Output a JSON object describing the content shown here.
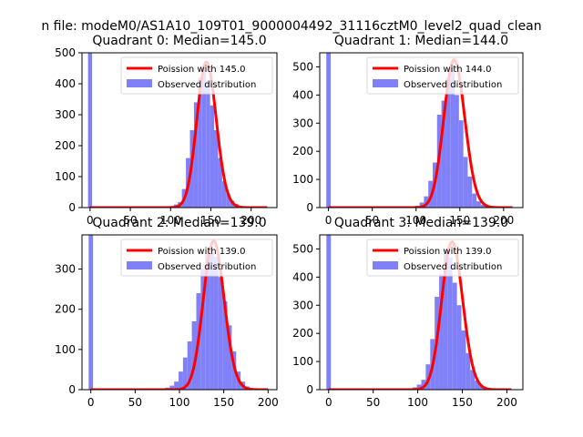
{
  "suptitle": "n file: modeM0/AS1A10_109T01_9000004492_31116cztM0_level2_quad_clean",
  "colors": {
    "hist": "#8080f8",
    "poisson": "#ff0000",
    "axes": "#000000",
    "legend_border": "#d9d9d9"
  },
  "chart_data": [
    {
      "type": "bar",
      "title": "Quadrant 0: Median=145.0",
      "xlim": [
        -10,
        232
      ],
      "ylim": [
        0,
        500
      ],
      "xticks": [
        0,
        50,
        100,
        150,
        200
      ],
      "yticks": [
        0,
        100,
        200,
        300,
        400,
        500
      ],
      "legend": {
        "position": "top-right",
        "entries": [
          "Poission with 145.0",
          "Observed distribution"
        ]
      },
      "poisson_mean": 145.0,
      "poisson_peak": 470,
      "curve_range": [
        0,
        220
      ],
      "hist": {
        "centers": [
          0,
          101.5,
          106.5,
          111.5,
          116.5,
          121.5,
          126.5,
          131.5,
          136.5,
          141.5,
          146.5,
          151.5,
          156.5,
          161.5,
          166.5,
          171.5,
          176.5,
          181.5,
          186.5
        ],
        "heights": [
          500,
          5,
          10,
          18,
          60,
          160,
          250,
          340,
          420,
          445,
          410,
          330,
          250,
          160,
          85,
          45,
          22,
          12,
          5
        ]
      }
    },
    {
      "type": "bar",
      "title": "Quadrant 1: Median=144.0",
      "xlim": [
        -10,
        222
      ],
      "ylim": [
        0,
        550
      ],
      "xticks": [
        0,
        50,
        100,
        150,
        200
      ],
      "yticks": [
        0,
        100,
        200,
        300,
        400,
        500
      ],
      "legend": {
        "position": "top-right",
        "entries": [
          "Poission with 144.0",
          "Observed distribution"
        ]
      },
      "poisson_mean": 144.0,
      "poisson_peak": 525,
      "curve_range": [
        0,
        210
      ],
      "hist": {
        "centers": [
          0,
          101.5,
          106.5,
          111.5,
          116.5,
          121.5,
          126.5,
          131.5,
          136.5,
          141.5,
          146.5,
          151.5,
          156.5,
          161.5,
          166.5,
          171.5,
          176.5,
          181.5
        ],
        "heights": [
          550,
          6,
          18,
          40,
          95,
          160,
          330,
          380,
          460,
          500,
          400,
          310,
          180,
          110,
          50,
          22,
          10,
          4
        ]
      }
    },
    {
      "type": "bar",
      "title": "Quadrant 2: Median=139.0",
      "xlim": [
        -10,
        210
      ],
      "ylim": [
        0,
        385
      ],
      "xticks": [
        0,
        50,
        100,
        150,
        200
      ],
      "yticks": [
        0,
        100,
        200,
        300
      ],
      "legend": {
        "position": "top-right",
        "entries": [
          "Poission with 139.0",
          "Observed distribution"
        ]
      },
      "poisson_mean": 139.0,
      "poisson_peak": 370,
      "curve_range": [
        0,
        200
      ],
      "hist": {
        "centers": [
          0,
          81.5,
          86.5,
          91.5,
          96.5,
          101.5,
          106.5,
          111.5,
          116.5,
          121.5,
          126.5,
          131.5,
          136.5,
          141.5,
          146.5,
          151.5,
          156.5,
          161.5,
          166.5,
          171.5,
          176.5
        ],
        "heights": [
          385,
          3,
          5,
          10,
          20,
          45,
          80,
          120,
          170,
          240,
          300,
          340,
          340,
          330,
          280,
          220,
          160,
          95,
          45,
          20,
          8
        ]
      }
    },
    {
      "type": "bar",
      "title": "Quadrant 3: Median=139.0",
      "xlim": [
        -10,
        218
      ],
      "ylim": [
        0,
        550
      ],
      "xticks": [
        0,
        50,
        100,
        150,
        200
      ],
      "yticks": [
        0,
        100,
        200,
        300,
        400,
        500
      ],
      "legend": {
        "position": "top-right",
        "entries": [
          "Poission with 139.0",
          "Observed distribution"
        ]
      },
      "poisson_mean": 139.0,
      "poisson_peak": 525,
      "curve_range": [
        0,
        205
      ],
      "hist": {
        "centers": [
          0,
          96.5,
          101.5,
          106.5,
          111.5,
          116.5,
          121.5,
          126.5,
          131.5,
          136.5,
          141.5,
          146.5,
          151.5,
          156.5,
          161.5,
          166.5,
          171.5,
          176.5
        ],
        "heights": [
          550,
          8,
          18,
          35,
          90,
          180,
          330,
          410,
          500,
          470,
          380,
          300,
          210,
          130,
          70,
          32,
          14,
          6
        ]
      }
    }
  ]
}
